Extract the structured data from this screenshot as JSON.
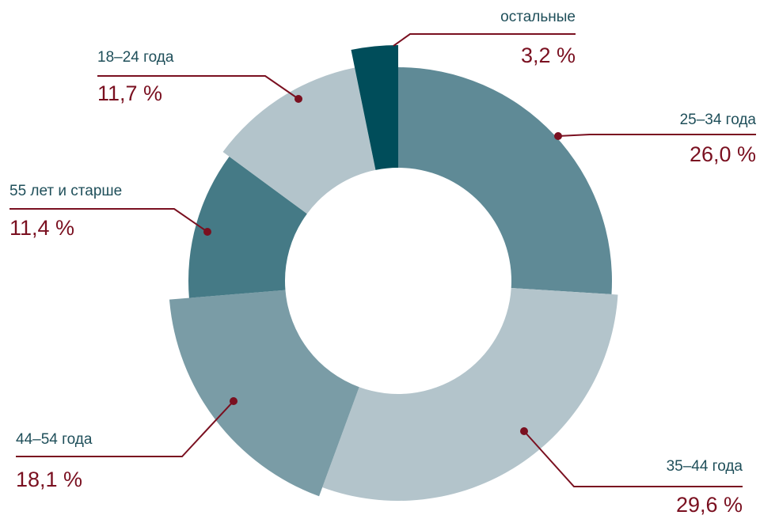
{
  "chart_data": {
    "type": "donut",
    "categories": [
      "25–34 года",
      "35–44 года",
      "44–54 года",
      "55 лет и старше",
      "18–24 года",
      "остальные"
    ],
    "values": [
      26.0,
      29.6,
      18.1,
      11.4,
      11.7,
      3.2
    ],
    "value_labels": [
      "26,0 %",
      "29,6 %",
      "18,1 %",
      "11,4 %",
      "11,7 %",
      "3,2 %"
    ],
    "colors": [
      "#5f8a96",
      "#b3c4cb",
      "#7a9ca6",
      "#457a86",
      "#b3c4cb",
      "#004d5a"
    ]
  }
}
